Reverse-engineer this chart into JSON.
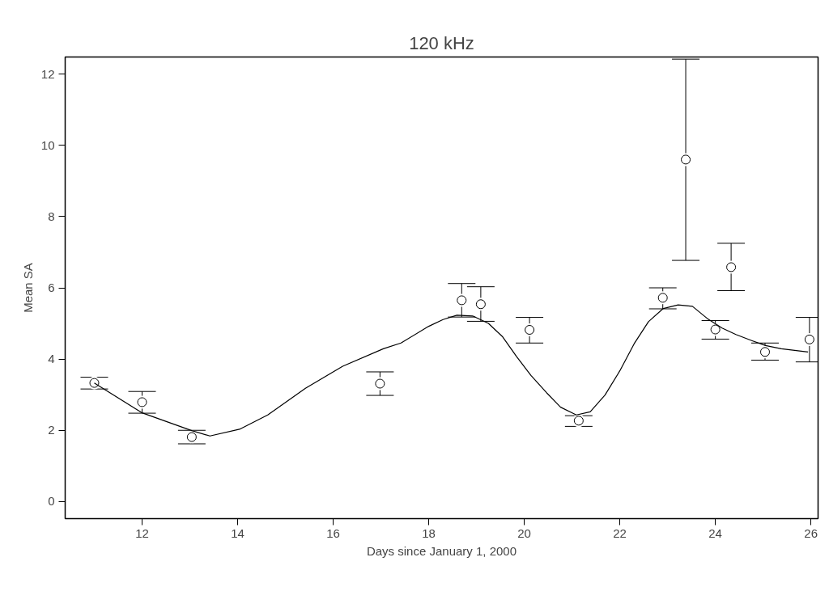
{
  "chart_data": {
    "type": "scatter",
    "title": "120 kHz",
    "xlabel": "Days since January 1, 2000",
    "ylabel": "Mean SA",
    "xlim": [
      10.39,
      26.15
    ],
    "ylim": [
      -0.48,
      12.48
    ],
    "xticks": [
      12,
      14,
      16,
      18,
      20,
      22,
      24,
      26
    ],
    "yticks": [
      0,
      2,
      4,
      6,
      8,
      10,
      12
    ],
    "grid": false,
    "series": [
      {
        "color": "#000000",
        "marker": "circle",
        "x": [
          11.0,
          12.0,
          13.04,
          16.98,
          18.69,
          19.09,
          20.11,
          21.14,
          22.9,
          23.38,
          24.0,
          24.33,
          25.04,
          25.97
        ],
        "values": [
          3.33,
          2.79,
          1.81,
          3.31,
          5.65,
          5.54,
          4.82,
          2.27,
          5.72,
          9.6,
          4.83,
          6.58,
          4.2,
          4.55
        ],
        "errors": [
          [
            3.16,
            3.49
          ],
          [
            2.48,
            3.09
          ],
          [
            1.62,
            2.0
          ],
          [
            2.98,
            3.64
          ],
          [
            5.18,
            6.12
          ],
          [
            5.06,
            6.03
          ],
          [
            4.45,
            5.17
          ],
          [
            2.11,
            2.41
          ],
          [
            5.41,
            6.0
          ],
          [
            6.77,
            12.42
          ],
          [
            4.56,
            5.08
          ],
          [
            5.92,
            7.25
          ],
          [
            3.97,
            4.45
          ],
          [
            3.92,
            5.17
          ]
        ]
      },
      {
        "type": "line",
        "color": "#000000",
        "line_style": "solid",
        "x": [
          11.0,
          12.0,
          13.04,
          13.42,
          14.04,
          14.63,
          15.42,
          16.2,
          17.05,
          17.42,
          18.0,
          18.3,
          18.59,
          18.92,
          19.25,
          19.55,
          19.84,
          20.14,
          20.47,
          20.76,
          21.09,
          21.38,
          21.69,
          22.0,
          22.3,
          22.6,
          22.91,
          23.22,
          23.52,
          23.83,
          24.14,
          24.43,
          24.76,
          25.05,
          25.38,
          25.94
        ],
        "values": [
          3.33,
          2.49,
          1.99,
          1.84,
          2.03,
          2.43,
          3.18,
          3.8,
          4.29,
          4.45,
          4.92,
          5.11,
          5.23,
          5.21,
          5.0,
          4.62,
          4.07,
          3.54,
          3.05,
          2.65,
          2.43,
          2.52,
          2.99,
          3.67,
          4.43,
          5.05,
          5.42,
          5.52,
          5.48,
          5.14,
          4.87,
          4.69,
          4.52,
          4.38,
          4.29,
          4.2
        ]
      }
    ]
  }
}
